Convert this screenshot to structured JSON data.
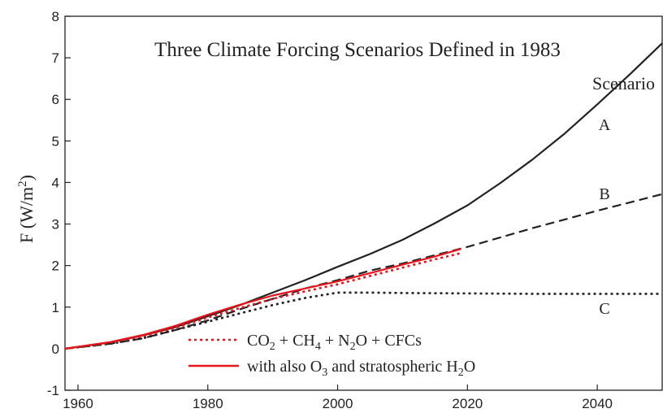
{
  "chart_data": {
    "type": "line",
    "title": "Three Climate Forcing Scenarios Defined in 1983",
    "ylabel_main": "F (W/m",
    "ylabel_sup": "2",
    "ylabel_end": ")",
    "xlim": [
      1958,
      2050
    ],
    "ylim": [
      -1,
      8
    ],
    "xticks": [
      1960,
      1980,
      2000,
      2020,
      2040
    ],
    "yticks": [
      -1,
      0,
      1,
      2,
      3,
      4,
      5,
      6,
      7,
      8
    ],
    "scenario_heading": "Scenario",
    "series": [
      {
        "name": "A",
        "style": "solid",
        "color": "#222222",
        "x": [
          1958,
          1965,
          1970,
          1975,
          1980,
          1985,
          1990,
          1995,
          2000,
          2005,
          2010,
          2015,
          2020,
          2025,
          2030,
          2035,
          2040,
          2045,
          2050
        ],
        "y": [
          0.0,
          0.15,
          0.32,
          0.52,
          0.78,
          1.05,
          1.35,
          1.65,
          1.97,
          2.28,
          2.62,
          3.02,
          3.45,
          3.98,
          4.55,
          5.18,
          5.88,
          6.6,
          7.35
        ]
      },
      {
        "name": "B",
        "style": "dashed",
        "color": "#222222",
        "x": [
          1958,
          1965,
          1970,
          1975,
          1980,
          1985,
          1990,
          1995,
          2000,
          2005,
          2010,
          2015,
          2020,
          2030,
          2040,
          2050
        ],
        "y": [
          0.0,
          0.12,
          0.25,
          0.45,
          0.68,
          0.95,
          1.2,
          1.45,
          1.65,
          1.88,
          2.05,
          2.25,
          2.45,
          2.9,
          3.32,
          3.72
        ]
      },
      {
        "name": "C",
        "style": "dotted",
        "color": "#222222",
        "x": [
          1958,
          1965,
          1970,
          1975,
          1980,
          1985,
          1990,
          1995,
          2000,
          2005,
          2010,
          2020,
          2030,
          2040,
          2050
        ],
        "y": [
          0.0,
          0.12,
          0.25,
          0.45,
          0.65,
          0.85,
          1.05,
          1.22,
          1.35,
          1.35,
          1.34,
          1.33,
          1.32,
          1.32,
          1.32
        ]
      },
      {
        "name": "CO2 + CH4 + N2O + CFCs",
        "style": "dotted",
        "color": "#e8141b",
        "x": [
          1958,
          1965,
          1970,
          1975,
          1980,
          1985,
          1990,
          1995,
          2000,
          2005,
          2010,
          2015,
          2019
        ],
        "y": [
          0.0,
          0.15,
          0.3,
          0.5,
          0.75,
          0.98,
          1.2,
          1.38,
          1.55,
          1.75,
          1.95,
          2.15,
          2.3
        ]
      },
      {
        "name": "with also O3 and stratospheric H2O",
        "style": "solid",
        "color": "#e8141b",
        "x": [
          1958,
          1965,
          1970,
          1975,
          1980,
          1985,
          1990,
          1995,
          2000,
          2005,
          2010,
          2015,
          2019
        ],
        "y": [
          0.0,
          0.16,
          0.33,
          0.55,
          0.82,
          1.06,
          1.28,
          1.45,
          1.62,
          1.82,
          2.02,
          2.22,
          2.4
        ]
      }
    ],
    "curve_labels": [
      "A",
      "B",
      "C"
    ],
    "legend": [
      {
        "style": "dotted",
        "color": "#e8141b",
        "parts": [
          "CO",
          "2",
          " + CH",
          "4",
          " + N",
          "2",
          "O + CFCs"
        ]
      },
      {
        "style": "solid",
        "color": "#e8141b",
        "parts": [
          "with also O",
          "3",
          " and stratospheric H",
          "2",
          "O"
        ]
      }
    ],
    "legend_position": "lower-center",
    "grid": false
  }
}
